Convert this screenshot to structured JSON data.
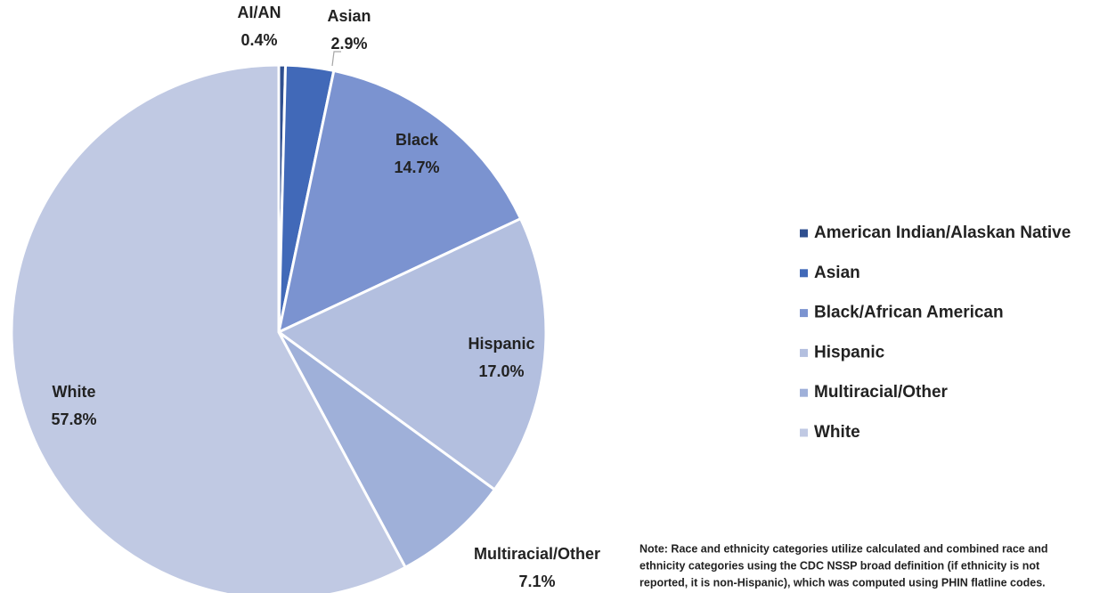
{
  "chart_data": {
    "type": "pie",
    "categories": [
      "American Indian/Alaskan Native",
      "Asian",
      "Black/African American",
      "Hispanic",
      "Multiracial/Other",
      "White"
    ],
    "labels": [
      "AI/AN",
      "Asian",
      "Black",
      "Hispanic",
      "Multiracial/Other",
      "White"
    ],
    "values": [
      0.4,
      2.9,
      14.7,
      17.0,
      7.1,
      57.8
    ],
    "value_labels": [
      "0.4%",
      "2.9%",
      "14.7%",
      "17.0%",
      "7.1%",
      "57.8%"
    ],
    "colors": [
      "#2f4f8f",
      "#4169b8",
      "#7b93d0",
      "#b3bfdf",
      "#9fb0d9",
      "#c0c9e3"
    ],
    "legend": "right",
    "note": [
      "Note: Race and ethnicity categories utilize calculated and combined race and",
      "ethnicity categories using the CDC NSSP broad definition (if ethnicity is not",
      "reported, it is non-Hispanic), which was computed using PHIN flatline codes."
    ]
  }
}
